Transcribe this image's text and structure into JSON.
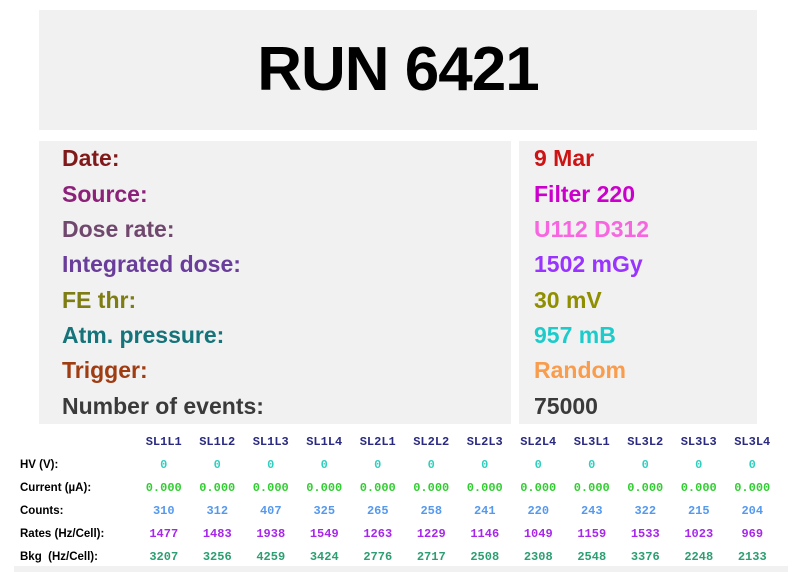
{
  "title": "RUN 6421",
  "info": {
    "rows": [
      {
        "label": "Date:",
        "value": "9 Mar",
        "label_color": "#801919",
        "value_color": "#cc1414"
      },
      {
        "label": "Source:",
        "value": "Filter 220",
        "label_color": "#8c2179",
        "value_color": "#cc00cc"
      },
      {
        "label": "Dose rate:",
        "value": "U112 D312",
        "label_color": "#70486e",
        "value_color": "#f766e0"
      },
      {
        "label": "Integrated dose:",
        "value": "1502 mGy",
        "label_color": "#6a3d9a",
        "value_color": "#9933ff"
      },
      {
        "label": "FE thr:",
        "value": "30 mV",
        "label_color": "#7d7d14",
        "value_color": "#8f8f00"
      },
      {
        "label": "Atm. pressure:",
        "value": "957 mB",
        "label_color": "#15737a",
        "value_color": "#1ecbcb"
      },
      {
        "label": "Trigger:",
        "value": "Random",
        "label_color": "#a03c12",
        "value_color": "#f99c4b"
      },
      {
        "label": "Number of events:",
        "value": "75000",
        "label_color": "#3a3a3a",
        "value_color": "#3a3a3a"
      }
    ]
  },
  "table": {
    "header_color": "#2a2a80",
    "columns": [
      "SL1L1",
      "SL1L2",
      "SL1L3",
      "SL1L4",
      "SL2L1",
      "SL2L2",
      "SL2L3",
      "SL2L4",
      "SL3L1",
      "SL3L2",
      "SL3L3",
      "SL3L4"
    ],
    "rows": [
      {
        "label": "HV (V):",
        "color": "#2fcfbf",
        "values": [
          "0",
          "0",
          "0",
          "0",
          "0",
          "0",
          "0",
          "0",
          "0",
          "0",
          "0",
          "0"
        ]
      },
      {
        "label": "Current (µA):",
        "color": "#32cd32",
        "values": [
          "0.000",
          "0.000",
          "0.000",
          "0.000",
          "0.000",
          "0.000",
          "0.000",
          "0.000",
          "0.000",
          "0.000",
          "0.000",
          "0.000"
        ]
      },
      {
        "label": "Counts:",
        "color": "#5599ee",
        "values": [
          "310",
          "312",
          "407",
          "325",
          "265",
          "258",
          "241",
          "220",
          "243",
          "322",
          "215",
          "204"
        ]
      },
      {
        "label": "Rates (Hz/Cell):",
        "color": "#a826ea",
        "values": [
          "1477",
          "1483",
          "1938",
          "1549",
          "1263",
          "1229",
          "1146",
          "1049",
          "1159",
          "1533",
          "1023",
          "969"
        ]
      },
      {
        "label": "Bkg  (Hz/Cell):",
        "color": "#2d9e72",
        "values": [
          "3207",
          "3256",
          "4259",
          "3424",
          "2776",
          "2717",
          "2508",
          "2308",
          "2548",
          "3376",
          "2248",
          "2133"
        ]
      }
    ]
  },
  "colors": {
    "page_background": "#ffffff",
    "panel_background": "#f1f1f1",
    "title_text": "#000000"
  }
}
